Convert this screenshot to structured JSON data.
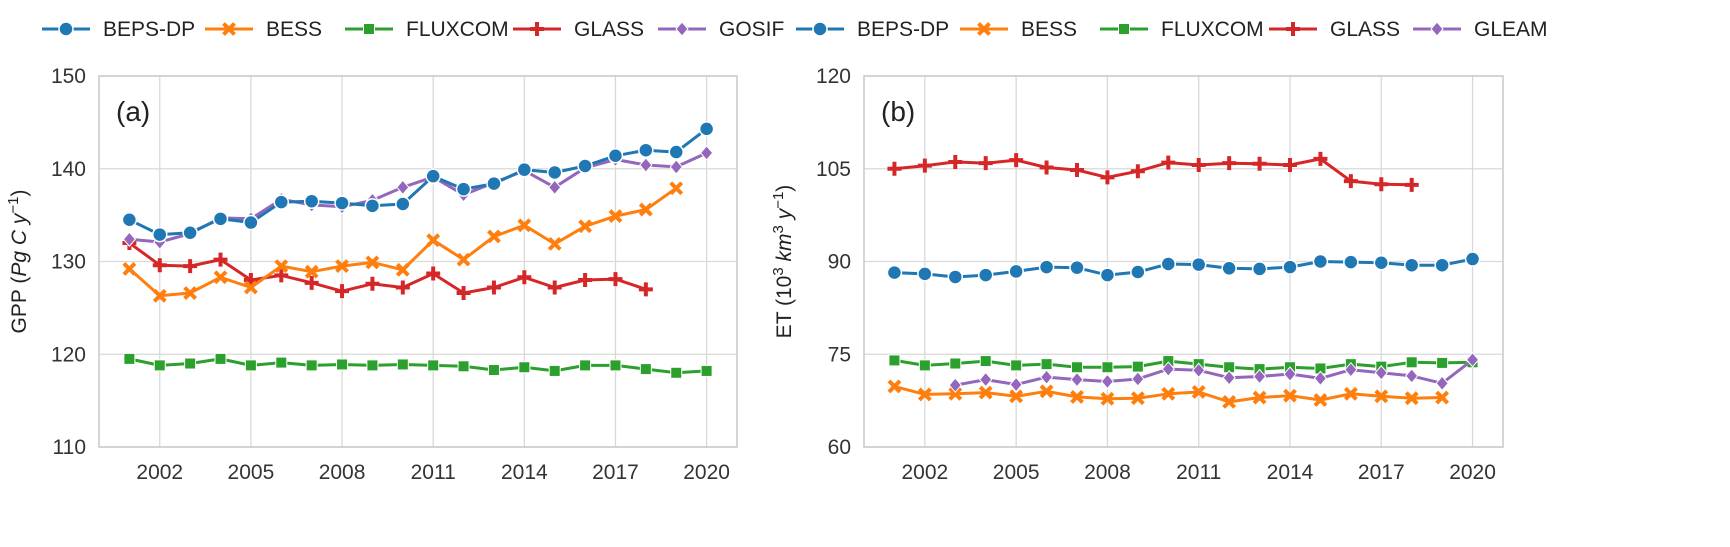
{
  "colors": {
    "BEPS-DP": "#1f77b4",
    "BESS": "#ff7f0e",
    "FLUXCOM": "#2ca02c",
    "GLASS": "#d62728",
    "GOSIF": "#9467bd",
    "GLEAM": "#9467bd",
    "grid": "#d9d9d9",
    "frame": "#c8c8c8"
  },
  "legend": [
    {
      "name": "BEPS-DP",
      "marker": "circle"
    },
    {
      "name": "BESS",
      "marker": "x"
    },
    {
      "name": "FLUXCOM",
      "marker": "square"
    },
    {
      "name": "GLASS",
      "marker": "plus"
    },
    {
      "name": "GOSIF",
      "marker": "diamond"
    },
    {
      "name": "BEPS-DP",
      "marker": "circle"
    },
    {
      "name": "BESS",
      "marker": "x"
    },
    {
      "name": "FLUXCOM",
      "marker": "square"
    },
    {
      "name": "GLASS",
      "marker": "plus"
    },
    {
      "name": "GLEAM",
      "marker": "diamond"
    }
  ],
  "chart_data": [
    {
      "type": "line",
      "panel_label": "(a)",
      "ylabel": {
        "prefix": "GPP (",
        "unit": "Pg C y",
        "sup": "−1",
        "suffix": ")"
      },
      "xlim": [
        2000,
        2021
      ],
      "ylim": [
        110,
        150
      ],
      "xticks": [
        2002,
        2005,
        2008,
        2011,
        2014,
        2017,
        2020
      ],
      "yticks": [
        110,
        120,
        130,
        140,
        150
      ],
      "grid": true,
      "series": [
        {
          "name": "FLUXCOM",
          "marker": "square",
          "x": [
            2001,
            2002,
            2003,
            2004,
            2005,
            2006,
            2007,
            2008,
            2009,
            2010,
            2011,
            2012,
            2013,
            2014,
            2015,
            2016,
            2017,
            2018,
            2019,
            2020
          ],
          "y": [
            119.5,
            118.8,
            119.0,
            119.5,
            118.8,
            119.1,
            118.8,
            118.9,
            118.8,
            118.9,
            118.8,
            118.7,
            118.3,
            118.6,
            118.2,
            118.8,
            118.8,
            118.4,
            118.0,
            118.2
          ]
        },
        {
          "name": "GLASS",
          "marker": "plus",
          "x": [
            2001,
            2002,
            2003,
            2004,
            2005,
            2006,
            2007,
            2008,
            2009,
            2010,
            2011,
            2012,
            2013,
            2014,
            2015,
            2016,
            2017,
            2018
          ],
          "y": [
            132.0,
            129.6,
            129.5,
            130.2,
            128.0,
            128.5,
            127.7,
            126.8,
            127.6,
            127.2,
            128.7,
            126.6,
            127.2,
            128.3,
            127.2,
            128.0,
            128.1,
            127.0
          ]
        },
        {
          "name": "BESS",
          "marker": "x",
          "x": [
            2001,
            2002,
            2003,
            2004,
            2005,
            2006,
            2007,
            2008,
            2009,
            2010,
            2011,
            2012,
            2013,
            2014,
            2015,
            2016,
            2017,
            2018,
            2019
          ],
          "y": [
            129.2,
            126.3,
            126.6,
            128.3,
            127.2,
            129.5,
            128.9,
            129.5,
            129.9,
            129.1,
            132.3,
            130.2,
            132.7,
            133.9,
            131.9,
            133.8,
            134.9,
            135.6,
            137.9
          ]
        },
        {
          "name": "GOSIF",
          "marker": "diamond",
          "x": [
            2001,
            2002,
            2003,
            2004,
            2005,
            2006,
            2007,
            2008,
            2009,
            2010,
            2011,
            2012,
            2013,
            2014,
            2015,
            2016,
            2017,
            2018,
            2019,
            2020
          ],
          "y": [
            132.4,
            132.1,
            133.0,
            134.7,
            134.6,
            136.7,
            136.1,
            135.9,
            136.6,
            138.0,
            139.1,
            137.2,
            138.5,
            139.8,
            138.0,
            140.1,
            141.0,
            140.4,
            140.2,
            141.7
          ]
        },
        {
          "name": "BEPS-DP",
          "marker": "circle",
          "x": [
            2001,
            2002,
            2003,
            2004,
            2005,
            2006,
            2007,
            2008,
            2009,
            2010,
            2011,
            2012,
            2013,
            2014,
            2015,
            2016,
            2017,
            2018,
            2019,
            2020
          ],
          "y": [
            134.5,
            132.9,
            133.1,
            134.6,
            134.2,
            136.4,
            136.5,
            136.3,
            136.0,
            136.2,
            139.2,
            137.8,
            138.4,
            139.9,
            139.6,
            140.3,
            141.4,
            142.0,
            141.8,
            144.3
          ]
        }
      ]
    },
    {
      "type": "line",
      "panel_label": "(b)",
      "ylabel": {
        "prefix": "ET (10",
        "presup": "3",
        "unit": " km",
        "unitsup": "3",
        "unit2": " y",
        "sup": "−1",
        "suffix": ")"
      },
      "xlim": [
        2000,
        2021
      ],
      "ylim": [
        60,
        120
      ],
      "xticks": [
        2002,
        2005,
        2008,
        2011,
        2014,
        2017,
        2020
      ],
      "yticks": [
        60,
        75,
        90,
        105,
        120
      ],
      "grid": true,
      "series": [
        {
          "name": "FLUXCOM",
          "marker": "square",
          "x": [
            2001,
            2002,
            2003,
            2004,
            2005,
            2006,
            2007,
            2008,
            2009,
            2010,
            2011,
            2012,
            2013,
            2014,
            2015,
            2016,
            2017,
            2018,
            2019,
            2020
          ],
          "y": [
            74.0,
            73.2,
            73.5,
            73.9,
            73.2,
            73.4,
            72.9,
            72.9,
            73.0,
            73.9,
            73.4,
            72.9,
            72.6,
            72.9,
            72.7,
            73.4,
            73.0,
            73.7,
            73.6,
            73.7
          ]
        },
        {
          "name": "BESS",
          "marker": "x",
          "x": [
            2001,
            2002,
            2003,
            2004,
            2005,
            2006,
            2007,
            2008,
            2009,
            2010,
            2011,
            2012,
            2013,
            2014,
            2015,
            2016,
            2017,
            2018,
            2019
          ],
          "y": [
            69.8,
            68.5,
            68.6,
            68.8,
            68.2,
            69.0,
            68.1,
            67.8,
            67.9,
            68.6,
            68.9,
            67.3,
            68.0,
            68.3,
            67.6,
            68.6,
            68.2,
            67.9,
            68.0
          ]
        },
        {
          "name": "GLEAM",
          "marker": "diamond",
          "x": [
            2003,
            2004,
            2005,
            2006,
            2007,
            2008,
            2009,
            2010,
            2011,
            2012,
            2013,
            2014,
            2015,
            2016,
            2017,
            2018,
            2019,
            2020
          ],
          "y": [
            70.0,
            70.9,
            70.1,
            71.3,
            70.9,
            70.6,
            71.0,
            72.6,
            72.4,
            71.2,
            71.4,
            71.8,
            71.1,
            72.5,
            72.0,
            71.5,
            70.3,
            74.1
          ]
        },
        {
          "name": "BEPS-DP",
          "marker": "circle",
          "x": [
            2001,
            2002,
            2003,
            2004,
            2005,
            2006,
            2007,
            2008,
            2009,
            2010,
            2011,
            2012,
            2013,
            2014,
            2015,
            2016,
            2017,
            2018,
            2019,
            2020
          ],
          "y": [
            88.2,
            88.0,
            87.5,
            87.8,
            88.4,
            89.1,
            89.0,
            87.8,
            88.3,
            89.6,
            89.5,
            88.9,
            88.8,
            89.1,
            90.0,
            89.9,
            89.8,
            89.4,
            89.4,
            90.4
          ]
        },
        {
          "name": "GLASS",
          "marker": "plus",
          "x": [
            2001,
            2002,
            2003,
            2004,
            2005,
            2006,
            2007,
            2008,
            2009,
            2010,
            2011,
            2012,
            2013,
            2014,
            2015,
            2016,
            2017,
            2018
          ],
          "y": [
            105.0,
            105.5,
            106.1,
            105.9,
            106.4,
            105.2,
            104.8,
            103.6,
            104.6,
            106.0,
            105.6,
            105.9,
            105.8,
            105.6,
            106.6,
            103.0,
            102.5,
            102.4
          ]
        }
      ]
    }
  ]
}
